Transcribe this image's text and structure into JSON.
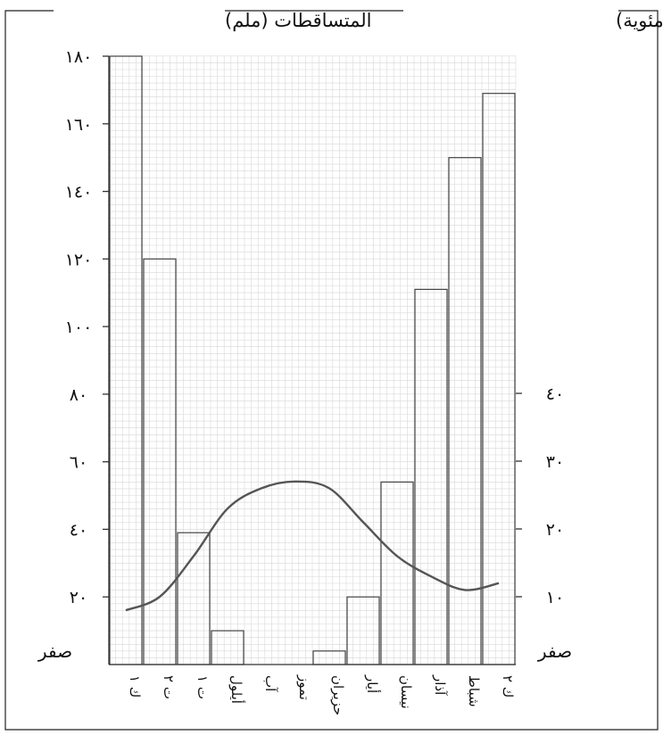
{
  "chart_data": {
    "type": "bar",
    "title_left": "المتساقطات (ملم)",
    "title_right": "الحرارة (درجة مئوية)",
    "categories": [
      "ك ٢",
      "شباط",
      "آذار",
      "نيسان",
      "أيار",
      "حزيران",
      "تموز",
      "آب",
      "أيلول",
      "ت ١",
      "ت ٢",
      "ك ١"
    ],
    "precipitation": {
      "ylim": [
        0,
        180
      ],
      "ticks": [
        "صفر",
        "٢٠",
        "٤٠",
        "٦٠",
        "٨٠",
        "١٠٠",
        "١٢٠",
        "١٤٠",
        "١٦٠",
        "١٨٠"
      ],
      "values": [
        169,
        150,
        111,
        54,
        20,
        4,
        0,
        0,
        10,
        39,
        120,
        180
      ]
    },
    "temperature": {
      "ticks": [
        "صفر",
        "١٠",
        "٢٠",
        "٣٠",
        "٤٠"
      ],
      "values": [
        12,
        11,
        13,
        16,
        21,
        26,
        27,
        26,
        23,
        16,
        10,
        8
      ]
    },
    "colors": {
      "bar": "#444444",
      "line": "#555555",
      "grid": "#d8d8d8"
    }
  }
}
